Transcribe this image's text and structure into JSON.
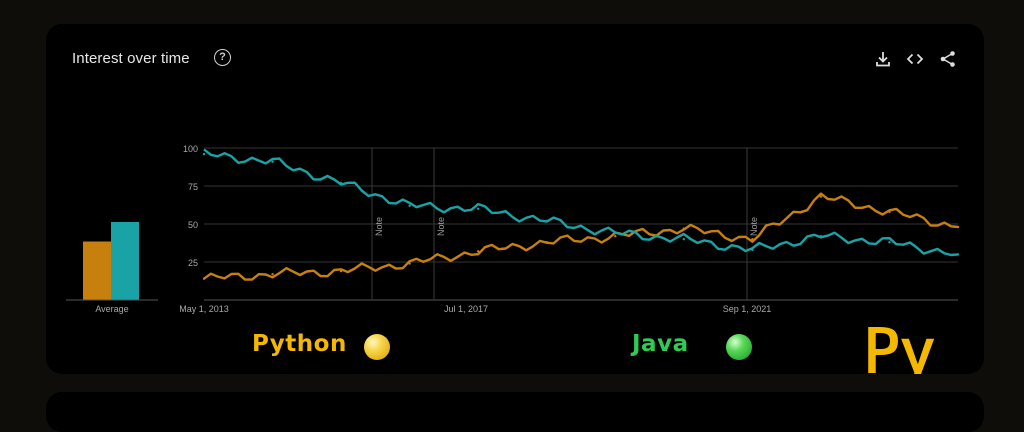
{
  "header": {
    "title": "Interest over time",
    "help_glyph": "?"
  },
  "toolbar": {
    "download_icon": "download-icon",
    "embed_icon": "embed-code-icon",
    "share_icon": "share-icon"
  },
  "legend": {
    "python_label": "Python",
    "java_label": "Java",
    "python_text_color": "#f5b800",
    "java_text_color": "#2ecc55"
  },
  "logo": {
    "text": "Py",
    "color": "#f5b800"
  },
  "colors": {
    "python": "#c7800e",
    "java": "#1aa3a6",
    "grid": "#333333",
    "axis_text": "#a8a8a8"
  },
  "chart_data": [
    {
      "type": "bar",
      "categories": [
        "Average"
      ],
      "series": [
        {
          "name": "Python",
          "values": [
            39
          ]
        },
        {
          "name": "Java",
          "values": [
            52
          ]
        }
      ],
      "ylim": [
        0,
        100
      ]
    },
    {
      "type": "line",
      "x_tick_labels": [
        "May 1, 2013",
        "Jul 1, 2017",
        "Sep 1, 2021"
      ],
      "y_ticks": [
        25,
        50,
        75,
        100
      ],
      "ylim": [
        0,
        100
      ],
      "x": [
        "2013-05",
        "2014-05",
        "2015-05",
        "2016-05",
        "2017-05",
        "2018-05",
        "2019-05",
        "2020-05",
        "2021-05",
        "2022-05",
        "2023-05",
        "2024-03"
      ],
      "annotations": [
        "Note",
        "Note",
        "Note"
      ],
      "grid": true,
      "series": [
        {
          "name": "Python",
          "values": [
            14,
            17,
            19,
            24,
            32,
            38,
            42,
            47,
            40,
            68,
            58,
            48
          ]
        },
        {
          "name": "Java",
          "values": [
            96,
            91,
            77,
            62,
            60,
            52,
            44,
            40,
            33,
            42,
            38,
            30
          ]
        }
      ]
    }
  ]
}
